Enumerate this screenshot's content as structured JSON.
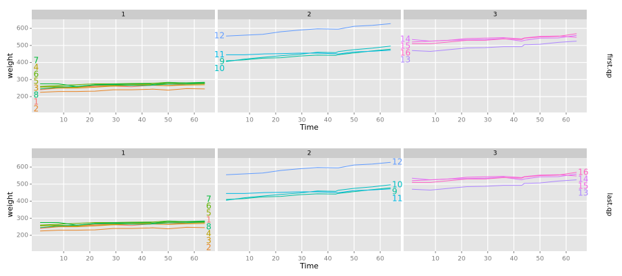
{
  "chart_data": {
    "type": "line",
    "x": [
      1,
      8,
      15,
      22,
      29,
      36,
      43,
      44,
      50,
      57,
      64
    ],
    "xlim": [
      -2.2,
      67.9
    ],
    "ylim": [
      107,
      653
    ],
    "xticks": [
      10,
      20,
      30,
      40,
      50,
      60
    ],
    "yticks": [
      200,
      300,
      400,
      500,
      600
    ],
    "x_label": "Time",
    "y_label": "weight",
    "panels": [
      "1",
      "2",
      "3"
    ],
    "rows": [
      "first.qp",
      "last.qp"
    ],
    "grid": true,
    "series": [
      {
        "name": "1",
        "panel": "1",
        "color": "#F8766D",
        "values": [
          240,
          250,
          255,
          260,
          262,
          258,
          266,
          266,
          265,
          272,
          278
        ]
      },
      {
        "name": "2",
        "panel": "1",
        "color": "#E88526",
        "values": [
          225,
          230,
          230,
          232,
          240,
          240,
          243,
          244,
          238,
          247,
          245
        ]
      },
      {
        "name": "3",
        "panel": "1",
        "color": "#D39200",
        "values": [
          245,
          250,
          250,
          255,
          262,
          265,
          267,
          267,
          264,
          268,
          269
        ]
      },
      {
        "name": "4",
        "panel": "1",
        "color": "#B79F00",
        "values": [
          260,
          255,
          255,
          265,
          265,
          268,
          270,
          272,
          274,
          273,
          275
        ]
      },
      {
        "name": "5",
        "panel": "1",
        "color": "#93AA00",
        "values": [
          255,
          260,
          255,
          270,
          270,
          273,
          274,
          273,
          276,
          278,
          280
        ]
      },
      {
        "name": "6",
        "panel": "1",
        "color": "#5EB300",
        "values": [
          260,
          265,
          270,
          275,
          275,
          277,
          278,
          278,
          284,
          279,
          281
        ]
      },
      {
        "name": "7",
        "panel": "1",
        "color": "#00BA38",
        "values": [
          275,
          275,
          260,
          270,
          273,
          274,
          276,
          271,
          282,
          281,
          284
        ]
      },
      {
        "name": "8",
        "panel": "1",
        "color": "#00BF74",
        "values": [
          245,
          255,
          260,
          268,
          270,
          265,
          265,
          267,
          273,
          274,
          278
        ]
      },
      {
        "name": "9",
        "panel": "2",
        "color": "#00C19F",
        "values": [
          410,
          415,
          425,
          428,
          438,
          443,
          442,
          446,
          456,
          468,
          478
        ]
      },
      {
        "name": "10",
        "panel": "2",
        "color": "#00BFC4",
        "values": [
          405,
          420,
          430,
          440,
          448,
          460,
          458,
          464,
          475,
          484,
          496
        ]
      },
      {
        "name": "11",
        "panel": "2",
        "color": "#00B9E3",
        "values": [
          445,
          445,
          450,
          452,
          455,
          455,
          451,
          450,
          462,
          466,
          472
        ]
      },
      {
        "name": "12",
        "panel": "2",
        "color": "#619CFF",
        "values": [
          555,
          560,
          565,
          580,
          590,
          597,
          595,
          595,
          612,
          618,
          628
        ]
      },
      {
        "name": "13",
        "panel": "3",
        "color": "#AE87FF",
        "values": [
          470,
          465,
          475,
          485,
          487,
          493,
          493,
          504,
          507,
          518,
          525
        ]
      },
      {
        "name": "14",
        "panel": "3",
        "color": "#DB72FB",
        "values": [
          535,
          525,
          530,
          533,
          535,
          540,
          525,
          530,
          543,
          544,
          559
        ]
      },
      {
        "name": "15",
        "panel": "3",
        "color": "#F564E3",
        "values": [
          520,
          525,
          530,
          540,
          543,
          546,
          538,
          544,
          553,
          555,
          548
        ]
      },
      {
        "name": "16",
        "panel": "3",
        "color": "#FF61C3",
        "values": [
          510,
          510,
          520,
          530,
          530,
          538,
          535,
          542,
          550,
          553,
          569
        ]
      }
    ]
  }
}
